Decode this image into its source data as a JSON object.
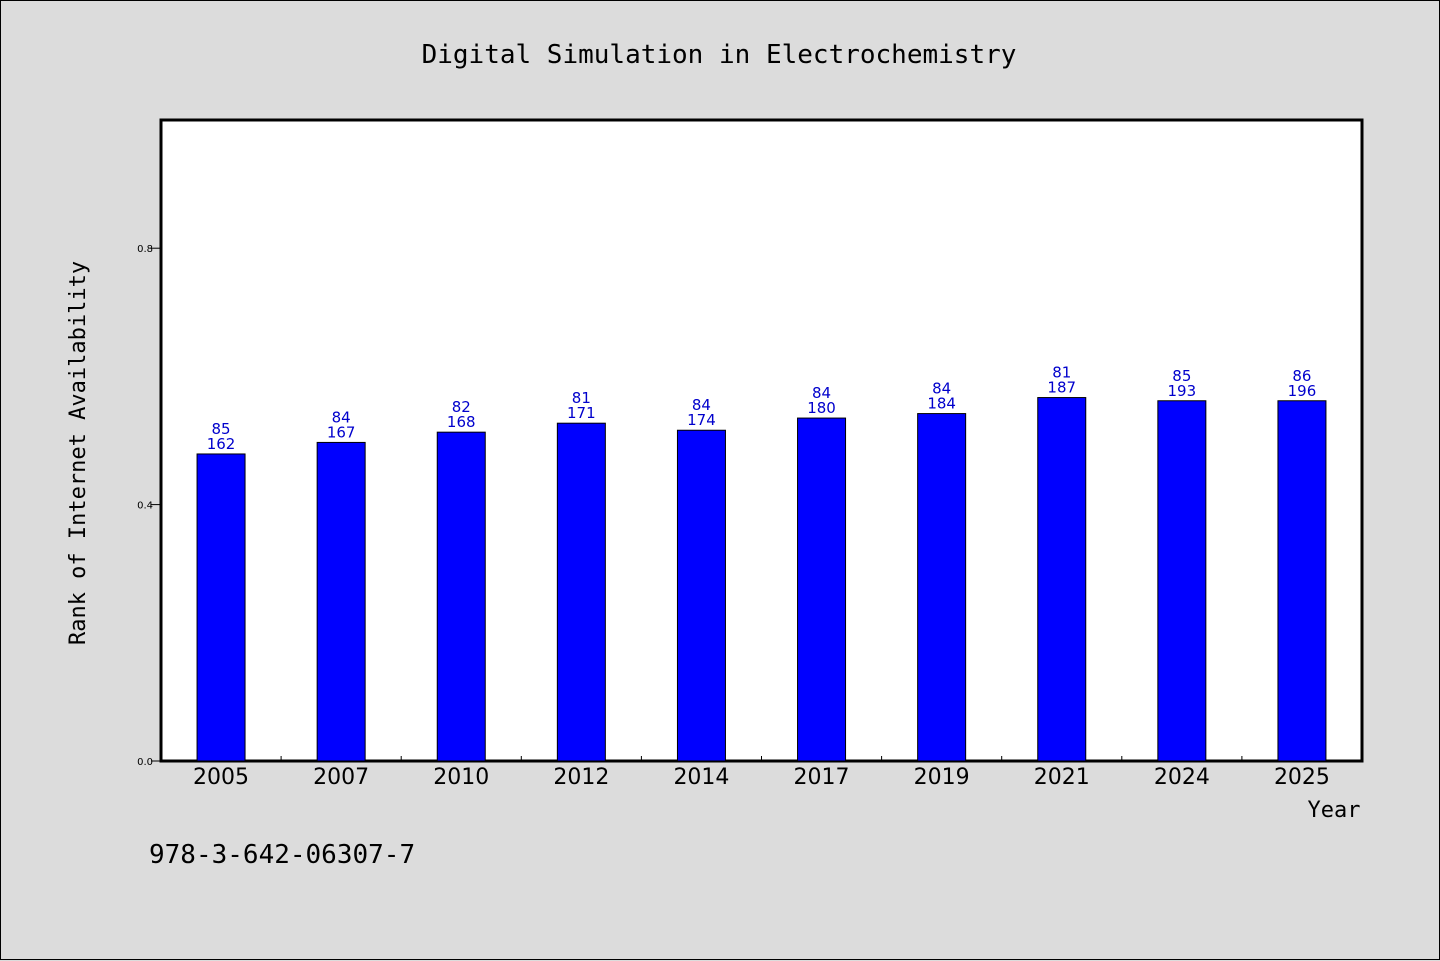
{
  "chart_data": {
    "type": "bar",
    "title": "Digital Simulation in Electrochemistry",
    "xlabel": "Year",
    "ylabel": "Rank of Internet Availability",
    "categories": [
      "2005",
      "2007",
      "2010",
      "2012",
      "2014",
      "2017",
      "2019",
      "2021",
      "2024",
      "2025"
    ],
    "values": [
      0.479,
      0.497,
      0.513,
      0.527,
      0.516,
      0.535,
      0.542,
      0.567,
      0.562,
      0.562
    ],
    "labels_top": [
      "85",
      "84",
      "82",
      "81",
      "84",
      "84",
      "84",
      "81",
      "85",
      "86"
    ],
    "labels_bottom": [
      "162",
      "167",
      "168",
      "171",
      "174",
      "180",
      "184",
      "187",
      "193",
      "196"
    ],
    "ylim": [
      0.0,
      1.0
    ],
    "yticks": [
      "0.0",
      "0.4",
      "0.8"
    ],
    "yticks_values": [
      0.0,
      0.4,
      0.8
    ],
    "grid": false,
    "bar_color": "#0000ff",
    "label_color": "#0000cc",
    "background": "#dcdcdc",
    "plot_background": "#ffffff"
  },
  "footer": {
    "isbn": "978-3-642-06307-7"
  }
}
